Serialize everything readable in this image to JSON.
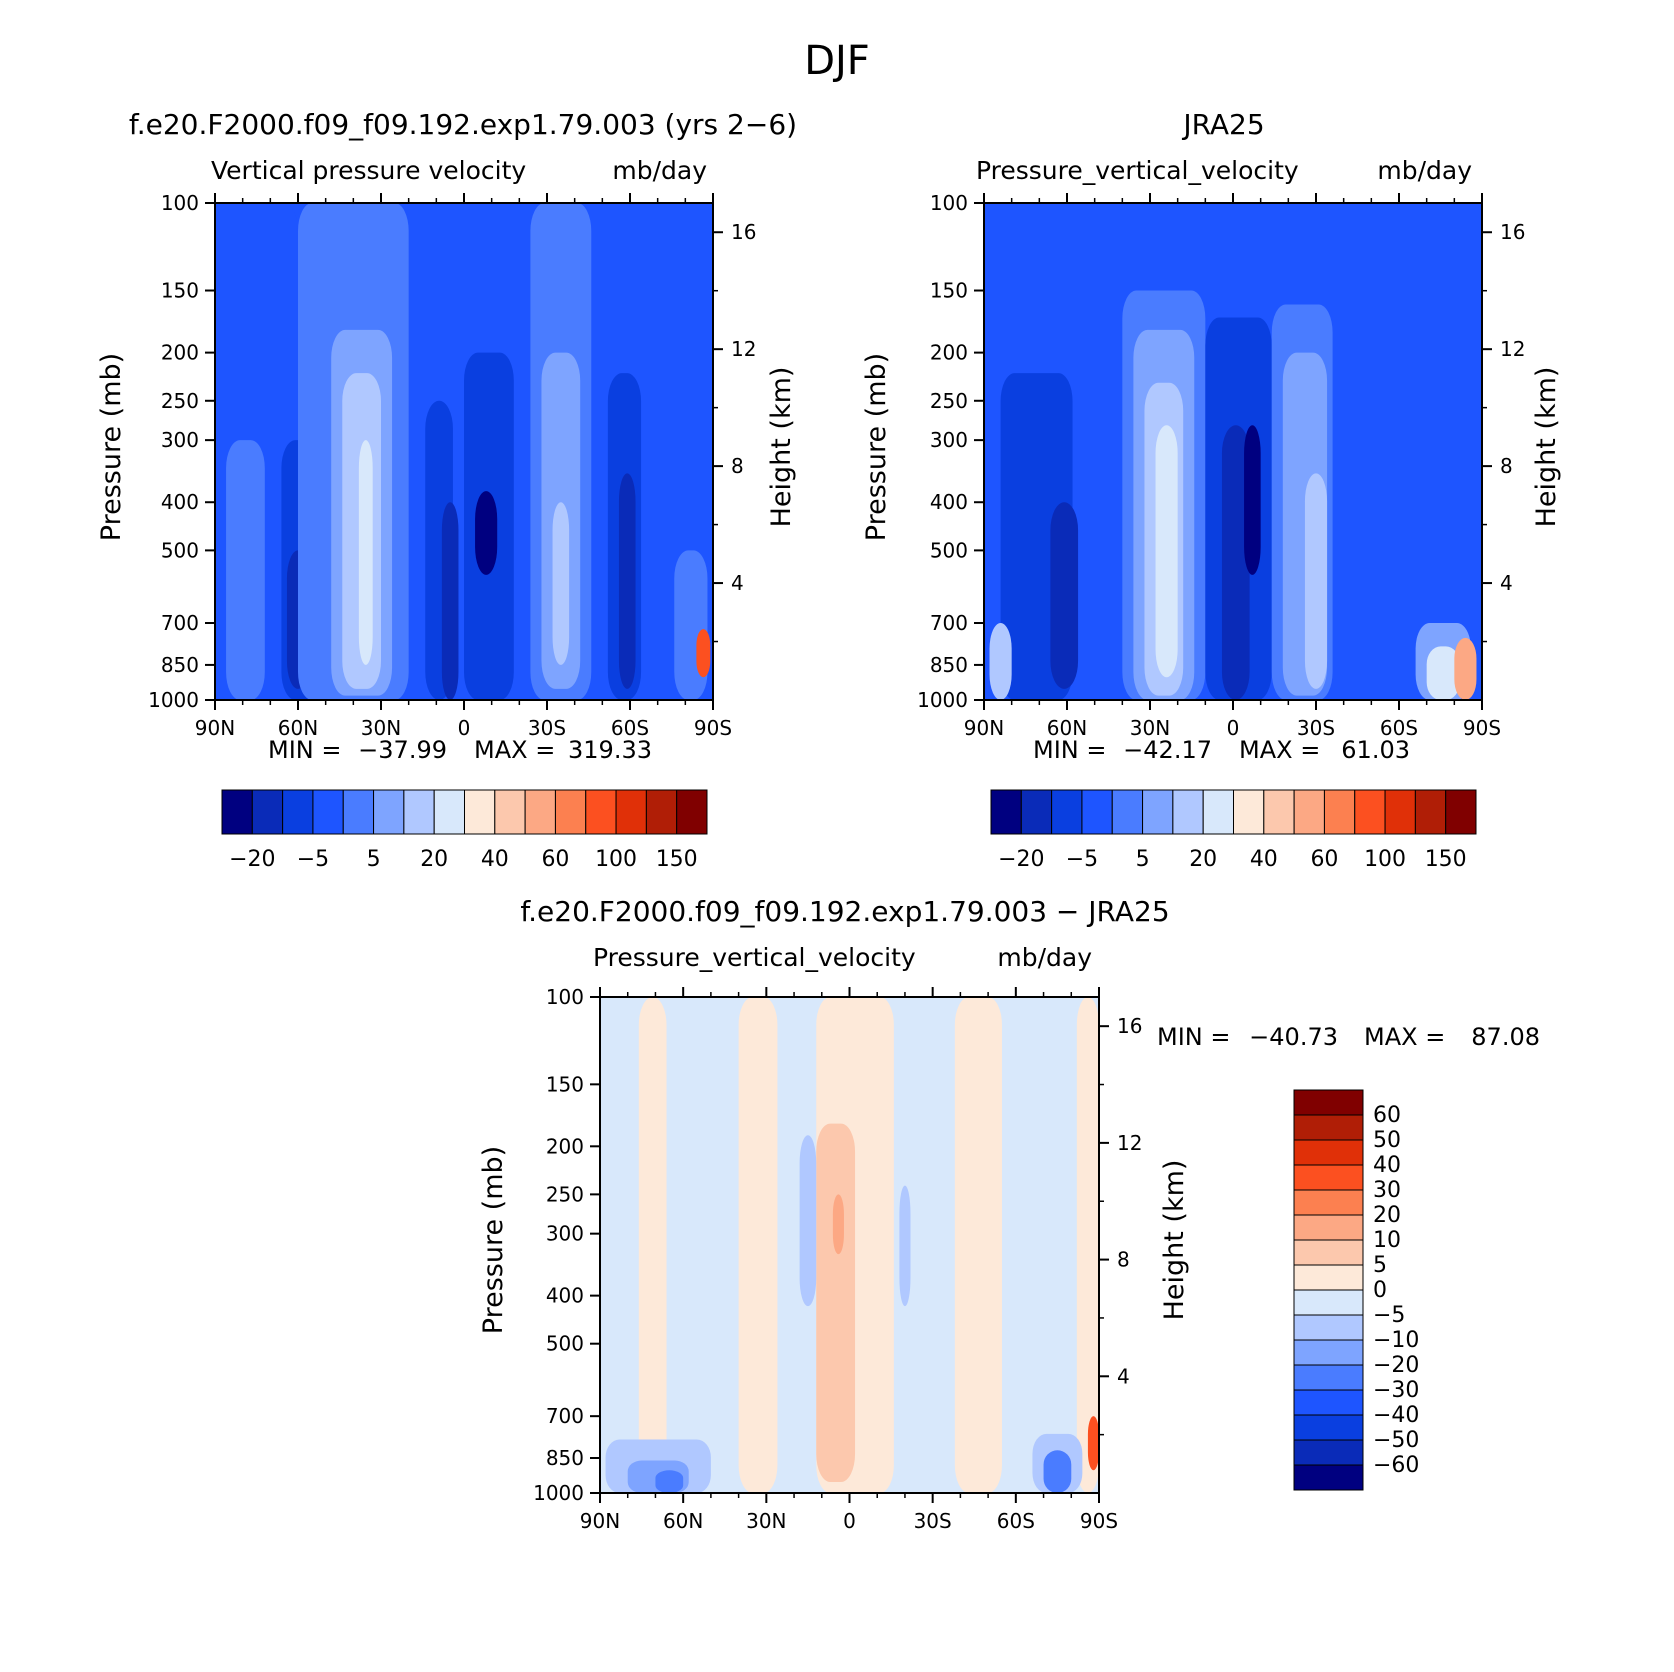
{
  "figure": {
    "title": "DJF"
  },
  "palettes": {
    "main": [
      "#000080",
      "#0a2bb8",
      "#0a3fe0",
      "#1e55ff",
      "#4a7cff",
      "#7ea4ff",
      "#b0c8ff",
      "#d8e8fb",
      "#fde9d9",
      "#fcc8ad",
      "#fca884",
      "#fc8050",
      "#fc5020",
      "#e03008",
      "#b01e06",
      "#800000"
    ],
    "diff": [
      "#000080",
      "#0a2bb8",
      "#0a3fe0",
      "#1e55ff",
      "#4a7cff",
      "#7ea4ff",
      "#b0c8ff",
      "#d8e8fb",
      "#fde9d9",
      "#fcc8ad",
      "#fca884",
      "#fc8050",
      "#fc5020",
      "#e03008",
      "#b01e06",
      "#800000"
    ]
  },
  "chart_data": [
    {
      "type": "heatmap",
      "title": "f.e20.F2000.f09_f09.192.exp1.79.003 (yrs 2−6)",
      "subtitle_left": "Vertical pressure velocity",
      "subtitle_right": "mb/day",
      "ylabel": "Pressure (mb)",
      "ylabel_right": "Height (km)",
      "x_ticks": [
        "90N",
        "60N",
        "30N",
        "0",
        "30S",
        "60S",
        "90S"
      ],
      "x_values": [
        90,
        60,
        30,
        0,
        -30,
        -60,
        -90
      ],
      "y_ticks": [
        "100",
        "150",
        "200",
        "250",
        "300",
        "400",
        "500",
        "700",
        "850",
        "1000"
      ],
      "y_values": [
        100,
        150,
        200,
        250,
        300,
        400,
        500,
        700,
        850,
        1000
      ],
      "ylim": [
        1000,
        100
      ],
      "y_scale": "log",
      "height_ticks": [
        "16",
        "12",
        "8",
        "4"
      ],
      "height_values": [
        16,
        12,
        8,
        4
      ],
      "stats": {
        "min_label": "MIN =",
        "min": "−37.99",
        "max_label": "MAX =",
        "max": "319.33"
      },
      "colorbar": {
        "orientation": "horizontal",
        "labels": [
          "−20",
          "−5",
          "5",
          "20",
          "40",
          "60",
          "100",
          "150"
        ]
      },
      "bands": [
        {
          "lat": [
            90,
            60
          ],
          "p": [
            100,
            1000
          ],
          "level": 3
        },
        {
          "lat": [
            86,
            72
          ],
          "p": [
            300,
            1000
          ],
          "level": 4
        },
        {
          "lat": [
            66,
            52
          ],
          "p": [
            300,
            1000
          ],
          "level": 2
        },
        {
          "lat": [
            64,
            56
          ],
          "p": [
            500,
            950
          ],
          "level": 1
        },
        {
          "lat": [
            60,
            20
          ],
          "p": [
            100,
            1000
          ],
          "level": 4
        },
        {
          "lat": [
            48,
            26
          ],
          "p": [
            180,
            980
          ],
          "level": 5
        },
        {
          "lat": [
            44,
            30
          ],
          "p": [
            220,
            950
          ],
          "level": 6
        },
        {
          "lat": [
            38,
            33
          ],
          "p": [
            300,
            850
          ],
          "level": 7
        },
        {
          "lat": [
            14,
            4
          ],
          "p": [
            250,
            1000
          ],
          "level": 2
        },
        {
          "lat": [
            8,
            2
          ],
          "p": [
            400,
            1000
          ],
          "level": 1
        },
        {
          "lat": [
            0,
            -18
          ],
          "p": [
            200,
            1000
          ],
          "level": 2
        },
        {
          "lat": [
            -4,
            -12
          ],
          "p": [
            380,
            560
          ],
          "level": 0
        },
        {
          "lat": [
            -24,
            -46
          ],
          "p": [
            100,
            1000
          ],
          "level": 4
        },
        {
          "lat": [
            -28,
            -42
          ],
          "p": [
            200,
            950
          ],
          "level": 5
        },
        {
          "lat": [
            -32,
            -38
          ],
          "p": [
            400,
            850
          ],
          "level": 6
        },
        {
          "lat": [
            -52,
            -64
          ],
          "p": [
            220,
            1000
          ],
          "level": 2
        },
        {
          "lat": [
            -56,
            -62
          ],
          "p": [
            350,
            950
          ],
          "level": 1
        },
        {
          "lat": [
            -76,
            -88
          ],
          "p": [
            500,
            1000
          ],
          "level": 4
        },
        {
          "lat": [
            -84,
            -89
          ],
          "p": [
            720,
            900
          ],
          "level": 12
        }
      ]
    },
    {
      "type": "heatmap",
      "title": "JRA25",
      "subtitle_left": "Pressure_vertical_velocity",
      "subtitle_right": "mb/day",
      "ylabel": "Pressure (mb)",
      "ylabel_right": "Height (km)",
      "x_ticks": [
        "90N",
        "60N",
        "30N",
        "0",
        "30S",
        "60S",
        "90S"
      ],
      "x_values": [
        90,
        60,
        30,
        0,
        -30,
        -60,
        -90
      ],
      "y_ticks": [
        "100",
        "150",
        "200",
        "250",
        "300",
        "400",
        "500",
        "700",
        "850",
        "1000"
      ],
      "y_values": [
        100,
        150,
        200,
        250,
        300,
        400,
        500,
        700,
        850,
        1000
      ],
      "ylim": [
        1000,
        100
      ],
      "y_scale": "log",
      "height_ticks": [
        "16",
        "12",
        "8",
        "4"
      ],
      "height_values": [
        16,
        12,
        8,
        4
      ],
      "stats": {
        "min_label": "MIN =",
        "min": "−42.17",
        "max_label": "MAX =",
        "max": "61.03"
      },
      "colorbar": {
        "orientation": "horizontal",
        "labels": [
          "−20",
          "−5",
          "5",
          "20",
          "40",
          "60",
          "100",
          "150"
        ]
      },
      "bands": [
        {
          "lat": [
            84,
            58
          ],
          "p": [
            220,
            1000
          ],
          "level": 2
        },
        {
          "lat": [
            66,
            56
          ],
          "p": [
            400,
            950
          ],
          "level": 1
        },
        {
          "lat": [
            88,
            80
          ],
          "p": [
            700,
            1000
          ],
          "level": 6
        },
        {
          "lat": [
            40,
            10
          ],
          "p": [
            150,
            1000
          ],
          "level": 4
        },
        {
          "lat": [
            36,
            14
          ],
          "p": [
            180,
            1000
          ],
          "level": 5
        },
        {
          "lat": [
            32,
            18
          ],
          "p": [
            230,
            980
          ],
          "level": 6
        },
        {
          "lat": [
            28,
            20
          ],
          "p": [
            280,
            900
          ],
          "level": 7
        },
        {
          "lat": [
            10,
            -14
          ],
          "p": [
            170,
            1000
          ],
          "level": 2
        },
        {
          "lat": [
            4,
            -6
          ],
          "p": [
            280,
            1000
          ],
          "level": 1
        },
        {
          "lat": [
            -4,
            -10
          ],
          "p": [
            280,
            560
          ],
          "level": 0
        },
        {
          "lat": [
            -14,
            -36
          ],
          "p": [
            160,
            1000
          ],
          "level": 4
        },
        {
          "lat": [
            -18,
            -34
          ],
          "p": [
            200,
            980
          ],
          "level": 5
        },
        {
          "lat": [
            -26,
            -34
          ],
          "p": [
            350,
            950
          ],
          "level": 6
        },
        {
          "lat": [
            -66,
            -86
          ],
          "p": [
            700,
            1000
          ],
          "level": 5
        },
        {
          "lat": [
            -70,
            -82
          ],
          "p": [
            780,
            1000
          ],
          "level": 7
        },
        {
          "lat": [
            -80,
            -88
          ],
          "p": [
            750,
            1000
          ],
          "level": 10
        }
      ]
    },
    {
      "type": "heatmap",
      "title": "f.e20.F2000.f09_f09.192.exp1.79.003 − JRA25",
      "subtitle_left": "Pressure_vertical_velocity",
      "subtitle_right": "mb/day",
      "ylabel": "Pressure (mb)",
      "ylabel_right": "Height (km)",
      "x_ticks": [
        "90N",
        "60N",
        "30N",
        "0",
        "30S",
        "60S",
        "90S"
      ],
      "x_values": [
        90,
        60,
        30,
        0,
        -30,
        -60,
        -90
      ],
      "y_ticks": [
        "100",
        "150",
        "200",
        "250",
        "300",
        "400",
        "500",
        "700",
        "850",
        "1000"
      ],
      "y_values": [
        100,
        150,
        200,
        250,
        300,
        400,
        500,
        700,
        850,
        1000
      ],
      "ylim": [
        1000,
        100
      ],
      "y_scale": "log",
      "height_ticks": [
        "16",
        "12",
        "8",
        "4"
      ],
      "height_values": [
        16,
        12,
        8,
        4
      ],
      "stats": {
        "min_label": "MIN =",
        "min": "−40.73",
        "max_label": "MAX =",
        "max": "87.08"
      },
      "colorbar": {
        "orientation": "vertical",
        "labels": [
          "60",
          "50",
          "40",
          "30",
          "20",
          "10",
          "5",
          "0",
          "−5",
          "−10",
          "−20",
          "−30",
          "−40",
          "−50",
          "−60"
        ]
      },
      "bands": [
        {
          "lat": [
            76,
            66
          ],
          "p": [
            100,
            1000
          ],
          "level": 8
        },
        {
          "lat": [
            40,
            26
          ],
          "p": [
            100,
            1000
          ],
          "level": 8
        },
        {
          "lat": [
            12,
            -16
          ],
          "p": [
            100,
            1000
          ],
          "level": 8
        },
        {
          "lat": [
            12,
            -2
          ],
          "p": [
            180,
            950
          ],
          "level": 9
        },
        {
          "lat": [
            6,
            2
          ],
          "p": [
            250,
            330
          ],
          "level": 10
        },
        {
          "lat": [
            -18,
            -22
          ],
          "p": [
            240,
            420
          ],
          "level": 6
        },
        {
          "lat": [
            18,
            12
          ],
          "p": [
            190,
            420
          ],
          "level": 6
        },
        {
          "lat": [
            -38,
            -55
          ],
          "p": [
            100,
            1000
          ],
          "level": 8
        },
        {
          "lat": [
            -82,
            -90
          ],
          "p": [
            100,
            1000
          ],
          "level": 8
        },
        {
          "lat": [
            88,
            50
          ],
          "p": [
            780,
            1000
          ],
          "level": 6
        },
        {
          "lat": [
            80,
            58
          ],
          "p": [
            860,
            1000
          ],
          "level": 5
        },
        {
          "lat": [
            70,
            60
          ],
          "p": [
            900,
            1000
          ],
          "level": 4
        },
        {
          "lat": [
            -66,
            -84
          ],
          "p": [
            760,
            1000
          ],
          "level": 6
        },
        {
          "lat": [
            -70,
            -80
          ],
          "p": [
            820,
            1000
          ],
          "level": 4
        },
        {
          "lat": [
            -86,
            -90
          ],
          "p": [
            700,
            900
          ],
          "level": 12
        }
      ]
    }
  ]
}
